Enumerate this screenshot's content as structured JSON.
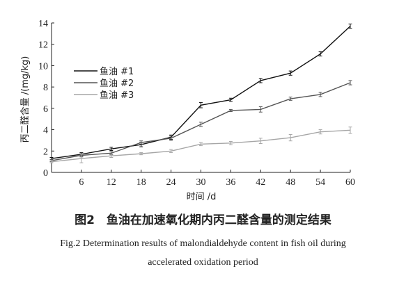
{
  "chart_data": {
    "type": "line",
    "x": [
      0,
      6,
      12,
      18,
      24,
      30,
      36,
      42,
      48,
      54,
      60
    ],
    "x_ticks": [
      6,
      12,
      18,
      24,
      30,
      36,
      42,
      48,
      54,
      60
    ],
    "y_ticks": [
      0,
      2,
      4,
      6,
      8,
      10,
      12,
      14
    ],
    "xlim": [
      0,
      60
    ],
    "ylim": [
      0,
      14
    ],
    "xlabel": "时间 /d",
    "ylabel": "丙二醛含量 /(mg/kg)",
    "legend_position": "top-left",
    "grid": false,
    "series": [
      {
        "name": "鱼油 #1",
        "color": "#111111",
        "values": [
          1.3,
          1.7,
          2.2,
          2.6,
          3.3,
          6.3,
          6.8,
          8.6,
          9.3,
          11.1,
          13.7
        ],
        "errors": [
          0.1,
          0.15,
          0.15,
          0.2,
          0.2,
          0.25,
          0.15,
          0.2,
          0.2,
          0.2,
          0.2
        ]
      },
      {
        "name": "鱼油 #2",
        "color": "#555555",
        "values": [
          1.1,
          1.6,
          1.8,
          2.8,
          3.2,
          4.5,
          5.8,
          5.9,
          6.9,
          7.3,
          8.4
        ],
        "errors": [
          0.1,
          0.15,
          0.15,
          0.15,
          0.2,
          0.2,
          0.1,
          0.25,
          0.15,
          0.2,
          0.2
        ]
      },
      {
        "name": "鱼油 #3",
        "color": "#a6a6a6",
        "values": [
          1.0,
          1.3,
          1.55,
          1.75,
          2.0,
          2.65,
          2.75,
          2.95,
          3.25,
          3.8,
          3.95
        ],
        "errors": [
          0.1,
          0.4,
          0.15,
          0.1,
          0.15,
          0.15,
          0.15,
          0.25,
          0.3,
          0.2,
          0.3
        ]
      }
    ]
  },
  "caption": {
    "cn": "图2　鱼油在加速氧化期内丙二醛含量的测定结果",
    "en_line1": "Fig.2  Determination results of malondialdehyde content in fish oil during",
    "en_line2": "accelerated oxidation period"
  }
}
